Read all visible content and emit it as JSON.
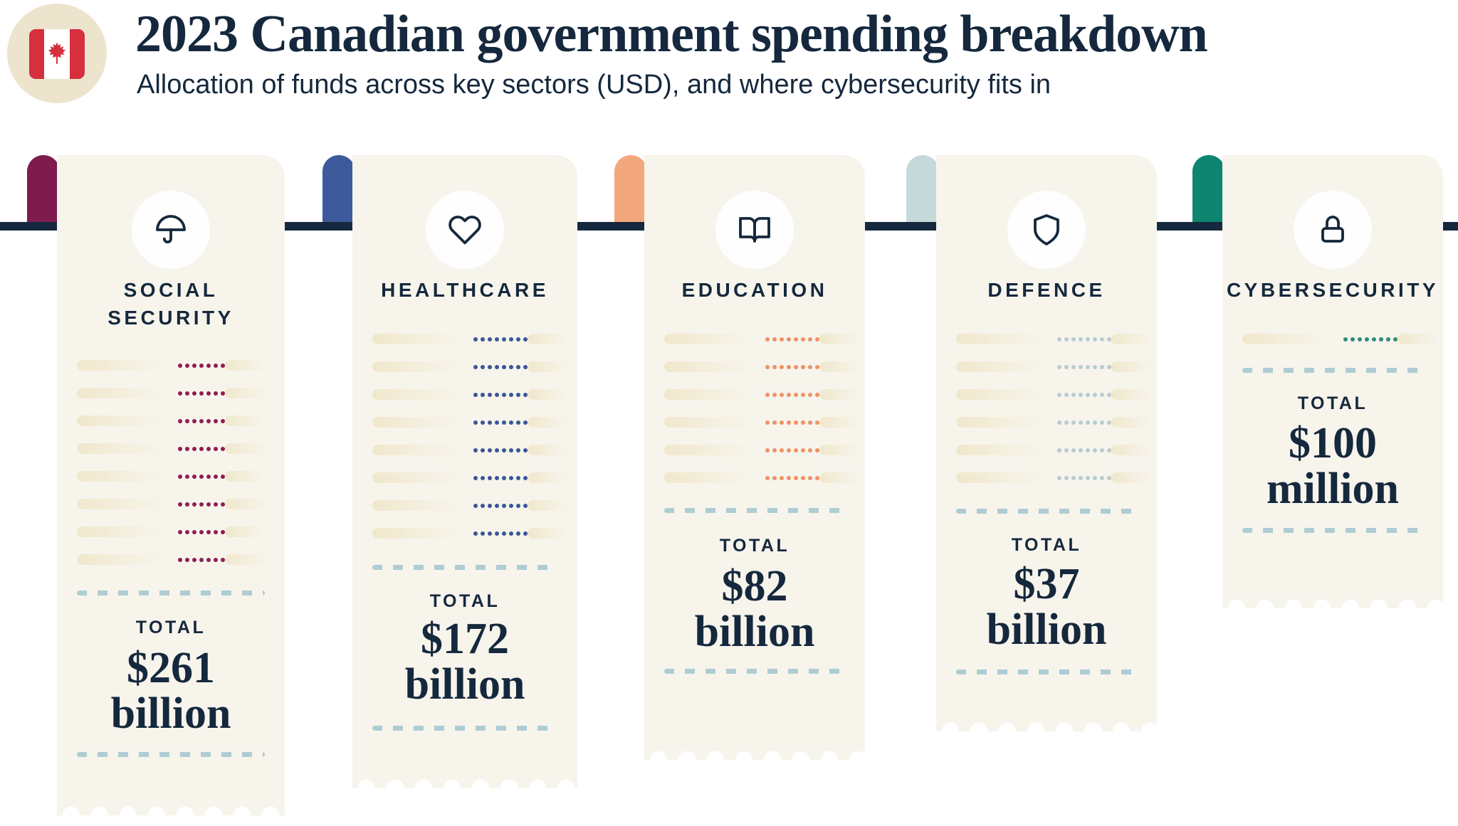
{
  "header": {
    "title": "2023 Canadian government spending breakdown",
    "subtitle": "Allocation of funds across key sectors (USD), and where cybersecurity fits in",
    "badge_bg": "#ece4cd",
    "flag_red": "#d62f3e"
  },
  "rail_color": "#15283d",
  "paper_color": "#f7f4ec",
  "text_color": "#15283d",
  "dash_color": "#aecdd3",
  "receipts": [
    {
      "label_lines": [
        "SOCIAL",
        "SECURITY"
      ],
      "icon": "umbrella",
      "total_label": "TOTAL",
      "amount": "$261",
      "unit": "billion",
      "tab_color": "#7e1c4e",
      "dot_color": "#8e1e52",
      "rows": 8,
      "dots_per_row": 7
    },
    {
      "label_lines": [
        "HEALTHCARE"
      ],
      "icon": "heart",
      "total_label": "TOTAL",
      "amount": "$172",
      "unit": "billion",
      "tab_color": "#3d5a9d",
      "dot_color": "#3a5795",
      "rows": 8,
      "dots_per_row": 8
    },
    {
      "label_lines": [
        "EDUCATION"
      ],
      "icon": "open-book",
      "total_label": "TOTAL",
      "amount": "$82",
      "unit": "billion",
      "tab_color": "#f3a77d",
      "dot_color": "#ef9264",
      "rows": 6,
      "dots_per_row": 8
    },
    {
      "label_lines": [
        "DEFENCE"
      ],
      "icon": "shield",
      "total_label": "TOTAL",
      "amount": "$37",
      "unit": "billion",
      "tab_color": "#c6d9da",
      "dot_color": "#b7ccd1",
      "rows": 6,
      "dots_per_row": 8
    },
    {
      "label_lines": [
        "CYBERSECURITY"
      ],
      "icon": "lock",
      "total_label": "TOTAL",
      "amount": "$100",
      "unit": "million",
      "tab_color": "#0d8570",
      "dot_color": "#2f8d75",
      "rows": 1,
      "dots_per_row": 8
    }
  ],
  "chart_data": {
    "type": "bar",
    "title": "2023 Canadian government spending breakdown",
    "subtitle": "Allocation of funds across key sectors (USD), and where cybersecurity fits in",
    "categories": [
      "Social Security",
      "Healthcare",
      "Education",
      "Defence",
      "Cybersecurity"
    ],
    "values_label": [
      "$261 billion",
      "$172 billion",
      "$82 billion",
      "$37 billion",
      "$100 million"
    ],
    "values_billions_usd": [
      261,
      172,
      82,
      37,
      0.1
    ],
    "legend": false,
    "grid": false,
    "style": "receipt-pictogram, longer receipt = larger spend"
  }
}
